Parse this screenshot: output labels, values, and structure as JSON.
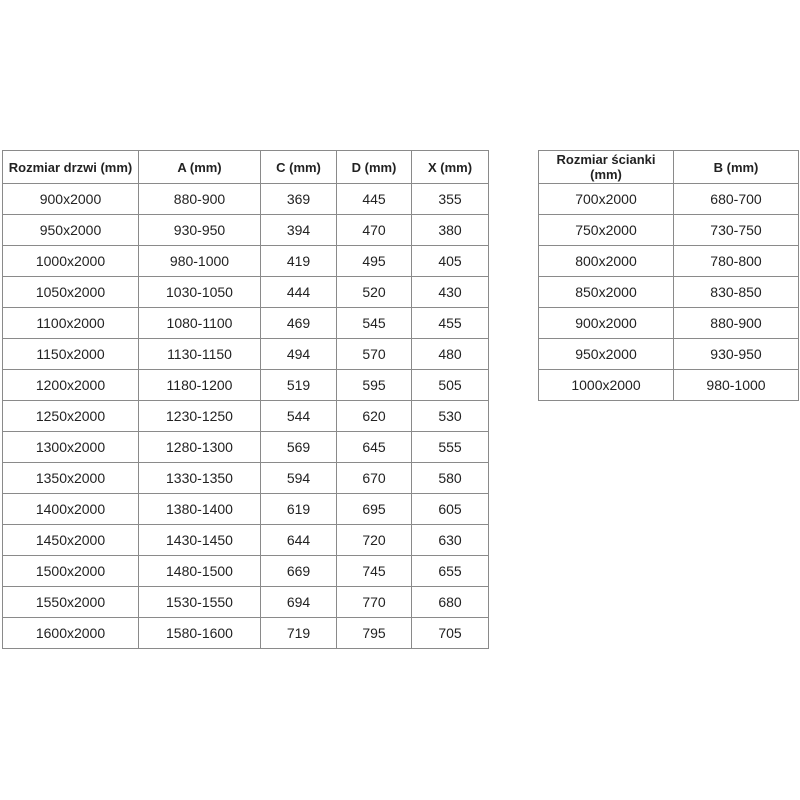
{
  "door_table": {
    "headers": [
      "Rozmiar drzwi (mm)",
      "A (mm)",
      "C (mm)",
      "D (mm)",
      "X (mm)"
    ],
    "rows": [
      [
        "900x2000",
        "880-900",
        "369",
        "445",
        "355"
      ],
      [
        "950x2000",
        "930-950",
        "394",
        "470",
        "380"
      ],
      [
        "1000x2000",
        "980-1000",
        "419",
        "495",
        "405"
      ],
      [
        "1050x2000",
        "1030-1050",
        "444",
        "520",
        "430"
      ],
      [
        "1100x2000",
        "1080-1100",
        "469",
        "545",
        "455"
      ],
      [
        "1150x2000",
        "1130-1150",
        "494",
        "570",
        "480"
      ],
      [
        "1200x2000",
        "1180-1200",
        "519",
        "595",
        "505"
      ],
      [
        "1250x2000",
        "1230-1250",
        "544",
        "620",
        "530"
      ],
      [
        "1300x2000",
        "1280-1300",
        "569",
        "645",
        "555"
      ],
      [
        "1350x2000",
        "1330-1350",
        "594",
        "670",
        "580"
      ],
      [
        "1400x2000",
        "1380-1400",
        "619",
        "695",
        "605"
      ],
      [
        "1450x2000",
        "1430-1450",
        "644",
        "720",
        "630"
      ],
      [
        "1500x2000",
        "1480-1500",
        "669",
        "745",
        "655"
      ],
      [
        "1550x2000",
        "1530-1550",
        "694",
        "770",
        "680"
      ],
      [
        "1600x2000",
        "1580-1600",
        "719",
        "795",
        "705"
      ]
    ]
  },
  "wall_table": {
    "headers": [
      "Rozmiar ścianki (mm)",
      "B (mm)"
    ],
    "rows": [
      [
        "700x2000",
        "680-700"
      ],
      [
        "750x2000",
        "730-750"
      ],
      [
        "800x2000",
        "780-800"
      ],
      [
        "850x2000",
        "830-850"
      ],
      [
        "900x2000",
        "880-900"
      ],
      [
        "950x2000",
        "930-950"
      ],
      [
        "1000x2000",
        "980-1000"
      ]
    ]
  }
}
